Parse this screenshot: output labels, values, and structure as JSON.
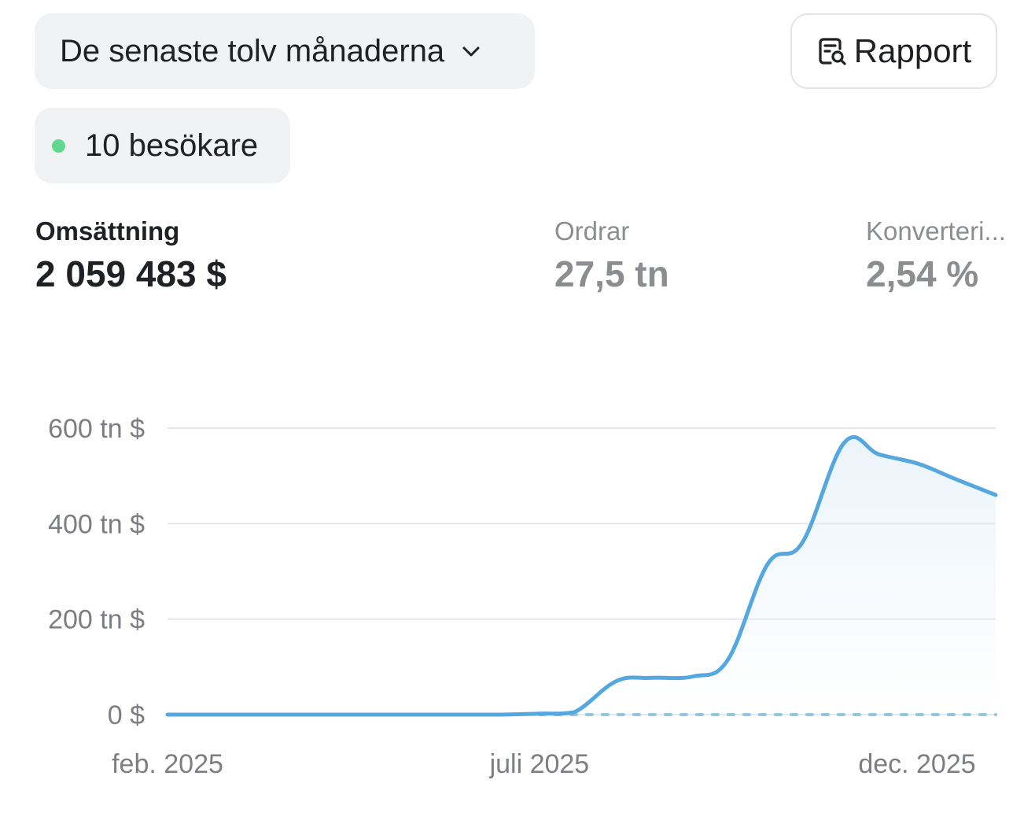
{
  "filters": {
    "period_label": "De senaste tolv månaderna",
    "period_icon": "chevron-down-icon"
  },
  "toolbar": {
    "report_label": "Rapport",
    "report_icon": "report-search-icon"
  },
  "visitors": {
    "label": "10 besökare",
    "status_color": "#5fd98d"
  },
  "metrics": [
    {
      "label": "Omsättning",
      "value": "2 059 483 $",
      "active": true
    },
    {
      "label": "Ordrar",
      "value": "27,5 tn",
      "active": false
    },
    {
      "label": "Konverteri...",
      "value": "2,54 %",
      "active": false
    }
  ],
  "chart_data": {
    "type": "area",
    "title": "",
    "xlabel": "",
    "ylabel": "",
    "x_tick_labels": [
      "feb. 2025",
      "juli 2025",
      "dec. 2025"
    ],
    "y_tick_labels": [
      "0 $",
      "200 tn $",
      "400 tn $",
      "600 tn $"
    ],
    "y_ticks": [
      0,
      200,
      400,
      600
    ],
    "ylim": [
      0,
      600
    ],
    "line_color": "#55a7e0",
    "grid": true,
    "x": [
      "2025-02-01",
      "2025-02-15",
      "2025-03-01",
      "2025-03-15",
      "2025-04-01",
      "2025-04-15",
      "2025-05-01",
      "2025-05-15",
      "2025-06-01",
      "2025-06-15",
      "2025-07-01",
      "2025-07-15",
      "2025-08-01",
      "2025-08-15",
      "2025-09-01",
      "2025-09-15",
      "2025-10-01",
      "2025-10-15",
      "2025-11-01",
      "2025-11-15",
      "2025-12-01",
      "2025-12-15",
      "2026-01-01"
    ],
    "series": [
      {
        "values": [
          0,
          0,
          0,
          0,
          0,
          0,
          0,
          0,
          0,
          0,
          2,
          5,
          70,
          77,
          80,
          115,
          315,
          360,
          570,
          545,
          525,
          495,
          460
        ]
      },
      {
        "values": [
          0,
          0,
          0,
          0,
          0,
          0,
          0,
          0,
          0,
          0,
          0,
          0,
          0,
          0,
          0,
          0,
          0,
          0,
          0,
          0,
          0,
          0,
          0
        ],
        "dashed": true
      }
    ]
  }
}
